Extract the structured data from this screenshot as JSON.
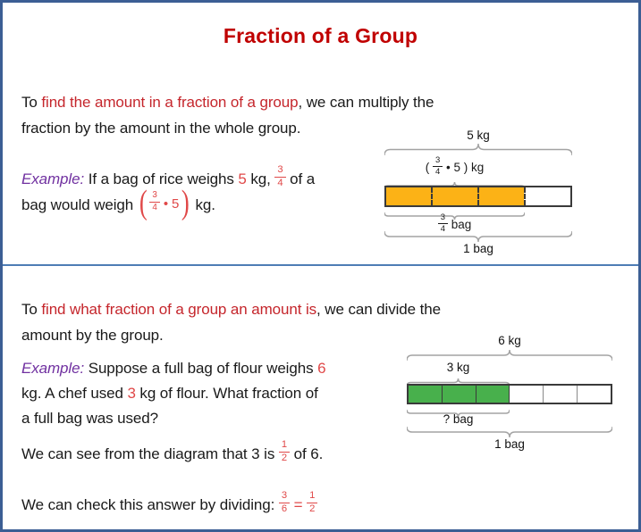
{
  "title": "Fraction of a Group",
  "colors": {
    "border_blue": "#3C5E94",
    "divider_blue": "#4E7DB5",
    "title_red": "#C00000",
    "highlight_red": "#C5262C",
    "math_red": "#E04848",
    "example_purple": "#7030A0",
    "orange": "#FCB216",
    "green": "#48B04C"
  },
  "section1": {
    "intro": [
      {
        "t": "To ",
        "c": "k"
      },
      {
        "t": "find the amount in a fraction of a group",
        "c": "r"
      },
      {
        "t": ", we can multiply the",
        "c": "k"
      },
      {
        "br": true
      },
      {
        "t": "fraction by the amount in the whole group.",
        "c": "k"
      }
    ],
    "example": [
      {
        "t": "Example:",
        "c": "p"
      },
      {
        "t": " If a bag of rice weighs ",
        "c": "k"
      },
      {
        "t": "5",
        "c": "m"
      },
      {
        "t": " kg, ",
        "c": "k"
      },
      {
        "frac": [
          "3",
          "4"
        ],
        "c": "m"
      },
      {
        "t": " of a",
        "c": "k"
      },
      {
        "br": true
      },
      {
        "t": "bag would weigh ",
        "c": "k"
      },
      {
        "paren": [
          {
            "frac": [
              "3",
              "4"
            ],
            "c": "m"
          },
          {
            "t": " • 5",
            "c": "m"
          }
        ],
        "c": "m"
      },
      {
        "t": " kg.",
        "c": "k"
      }
    ],
    "diagram": {
      "whole_weight_label": "5 kg",
      "part_weight_label": [
        {
          "t": "( ",
          "c": "k"
        },
        {
          "frac": [
            "3",
            "4"
          ],
          "c": "k"
        },
        {
          "t": " • 5 ) kg",
          "c": "k"
        }
      ],
      "part_bag_label": [
        {
          "frac": [
            "3",
            "4"
          ],
          "c": "k"
        },
        {
          "t": " bag",
          "c": "k"
        }
      ],
      "whole_bag_label": "1 bag",
      "cells": [
        "orange",
        "orange",
        "orange",
        "white"
      ]
    }
  },
  "section2": {
    "intro": [
      {
        "t": "To ",
        "c": "k"
      },
      {
        "t": "find what fraction of a group an amount is",
        "c": "r"
      },
      {
        "t": ", we can divide the",
        "c": "k"
      },
      {
        "br": true
      },
      {
        "t": "amount by the group.",
        "c": "k"
      }
    ],
    "example": [
      {
        "t": "Example:",
        "c": "p"
      },
      {
        "t": " Suppose a full bag of flour weighs ",
        "c": "k"
      },
      {
        "t": "6",
        "c": "m"
      },
      {
        "br": true
      },
      {
        "t": "kg. A chef used ",
        "c": "k"
      },
      {
        "t": "3",
        "c": "m"
      },
      {
        "t": " kg of flour. What fraction of",
        "c": "k"
      },
      {
        "br": true
      },
      {
        "t": "a full bag was used?",
        "c": "k"
      }
    ],
    "diagram": {
      "whole_weight_label": "6 kg",
      "part_weight_label": "3 kg",
      "part_bag_label": "? bag",
      "whole_bag_label": "1 bag",
      "cells": [
        "green",
        "green",
        "green",
        "white",
        "white",
        "white"
      ]
    },
    "observe": [
      {
        "t": "We can see from the diagram that 3 is ",
        "c": "k"
      },
      {
        "frac": [
          "1",
          "2"
        ],
        "c": "m"
      },
      {
        "t": " of 6.",
        "c": "k"
      }
    ],
    "check": [
      {
        "t": "We can check this answer by dividing:  ",
        "c": "k"
      },
      {
        "frac": [
          "3",
          "6"
        ],
        "c": "m"
      },
      {
        "t": " = ",
        "c": "m"
      },
      {
        "frac": [
          "1",
          "2"
        ],
        "c": "m"
      }
    ]
  }
}
